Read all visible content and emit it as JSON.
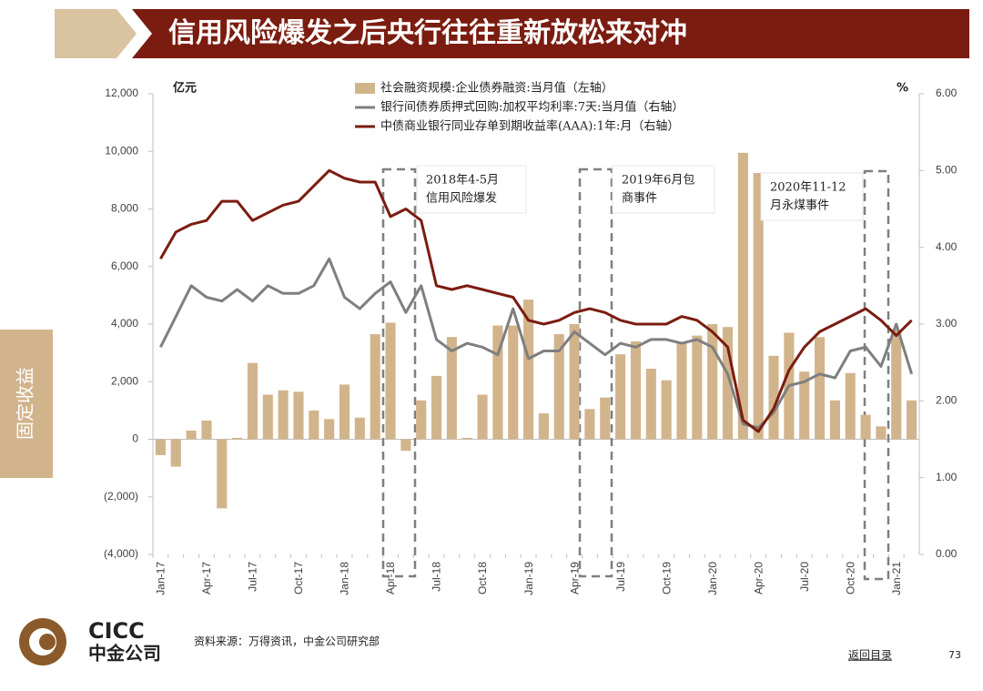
{
  "header": {
    "title": "信用风险爆发之后央行往往重新放松来对冲"
  },
  "sidebar": {
    "label": "固定收益"
  },
  "chart_data": {
    "type": "bar-line",
    "y_unit": "亿元",
    "y2_unit": "%",
    "categories": [
      "Jan-17",
      null,
      null,
      "Apr-17",
      null,
      null,
      "Jul-17",
      null,
      null,
      "Oct-17",
      null,
      null,
      "Jan-18",
      null,
      null,
      "Apr-18",
      null,
      null,
      "Jul-18",
      null,
      null,
      "Oct-18",
      null,
      null,
      "Jan-19",
      null,
      null,
      "Apr-19",
      null,
      null,
      "Jul-19",
      null,
      null,
      "Oct-19",
      null,
      null,
      "Jan-20",
      null,
      null,
      "Apr-20",
      null,
      null,
      "Jul-20",
      null,
      null,
      "Oct-20",
      null,
      null,
      "Jan-21",
      null
    ],
    "series": [
      {
        "name": "社会融资规模:企业债券融资:当月值（左轴）",
        "type": "bar",
        "axis": "y",
        "color": "#d2b48c",
        "values": [
          -550,
          -950,
          300,
          650,
          -2400,
          50,
          2650,
          1550,
          1700,
          1650,
          1000,
          700,
          1900,
          750,
          3650,
          4050,
          -400,
          1350,
          2200,
          3550,
          50,
          1550,
          3950,
          3950,
          4850,
          900,
          3650,
          4000,
          1050,
          1450,
          2950,
          3400,
          2450,
          2050,
          3350,
          3600,
          4000,
          3900,
          9950,
          9250,
          2900,
          3700,
          2350,
          3550,
          1350,
          2300,
          850,
          450,
          3800,
          1350
        ]
      },
      {
        "name": "银行间债券质押式回购:加权平均利率:7天:当月值（右轴）",
        "type": "line",
        "axis": "y2",
        "color": "#7f7f7f",
        "values": [
          2.7,
          3.1,
          3.5,
          3.35,
          3.3,
          3.45,
          3.3,
          3.5,
          3.4,
          3.4,
          3.5,
          3.85,
          3.35,
          3.2,
          3.4,
          3.55,
          3.15,
          3.5,
          2.8,
          2.65,
          2.75,
          2.7,
          2.6,
          3.2,
          2.55,
          2.65,
          2.65,
          2.9,
          2.75,
          2.6,
          2.75,
          2.7,
          2.8,
          2.8,
          2.75,
          2.8,
          2.7,
          2.35,
          1.7,
          1.65,
          1.85,
          2.2,
          2.25,
          2.35,
          2.3,
          2.65,
          2.7,
          2.45,
          3.0,
          2.35
        ]
      },
      {
        "name": "中债商业银行同业存单到期收益率(AAA):1年:月（右轴）",
        "type": "line",
        "axis": "y2",
        "color": "#7b1c10",
        "values": [
          3.85,
          4.2,
          4.3,
          4.35,
          4.6,
          4.6,
          4.35,
          4.45,
          4.55,
          4.6,
          4.8,
          5.0,
          4.9,
          4.85,
          4.85,
          4.4,
          4.5,
          4.35,
          3.5,
          3.45,
          3.5,
          3.45,
          3.4,
          3.35,
          3.05,
          3.0,
          3.05,
          3.15,
          3.2,
          3.15,
          3.05,
          3.0,
          3.0,
          3.0,
          3.1,
          3.05,
          2.9,
          2.7,
          1.75,
          1.6,
          1.9,
          2.4,
          2.7,
          2.9,
          3.0,
          3.1,
          3.2,
          3.05,
          2.85,
          3.05
        ]
      }
    ],
    "ylim": [
      -4000,
      12000
    ],
    "yticks": [
      {
        "value": -4000,
        "label": "(4,000)"
      },
      {
        "value": -2000,
        "label": "(2,000)"
      },
      0,
      {
        "value": 2000,
        "label": "2,000"
      },
      {
        "value": 4000,
        "label": "4,000"
      },
      {
        "value": 6000,
        "label": "6,000"
      },
      {
        "value": 8000,
        "label": "8,000"
      },
      {
        "value": 10000,
        "label": "10,000"
      },
      {
        "value": 12000,
        "label": "12,000"
      }
    ],
    "y2lim": [
      0,
      6
    ],
    "y2ticks": [
      {
        "value": 0,
        "label": "0.00"
      },
      {
        "value": 1,
        "label": "1.00"
      },
      {
        "value": 2,
        "label": "2.00"
      },
      {
        "value": 3,
        "label": "3.00"
      },
      {
        "value": 4,
        "label": "4.00"
      },
      {
        "value": 5,
        "label": "5.00"
      },
      {
        "value": 6,
        "label": "6.00"
      }
    ],
    "negative_tick_color": "#c00000",
    "legend": "top",
    "annotations": [
      {
        "text": [
          "2018年4-5月",
          "信用风险爆发"
        ]
      },
      {
        "text": [
          "2019年6月包",
          "商事件"
        ]
      },
      {
        "text": [
          "2020年11-12",
          "月永煤事件"
        ]
      }
    ]
  },
  "footer": {
    "logo_text": "CICC",
    "company": "中金公司",
    "source": "资料来源：万得资讯，中金公司研究部",
    "back_link": "返回目录",
    "page_number": 73
  }
}
